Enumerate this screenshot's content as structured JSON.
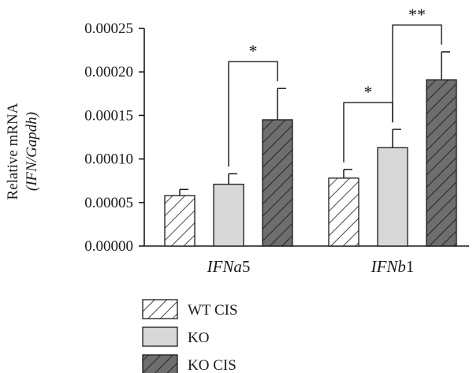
{
  "chart_data": {
    "type": "bar",
    "categories": [
      "IFNa5",
      "IFNb1"
    ],
    "category_parts": [
      {
        "prefix": "IFNa",
        "suffix": "5"
      },
      {
        "prefix": "IFNb",
        "suffix": "1"
      }
    ],
    "series": [
      {
        "name": "WT CIS",
        "values": [
          5.8e-05,
          7.8e-05
        ],
        "errors": [
          7e-06,
          1e-05
        ],
        "pattern": "hatch-light"
      },
      {
        "name": "KO",
        "values": [
          7.1e-05,
          0.000113
        ],
        "errors": [
          1.2e-05,
          2.1e-05
        ],
        "pattern": "solid-light"
      },
      {
        "name": "KO CIS",
        "values": [
          0.000145,
          0.000191
        ],
        "errors": [
          3.6e-05,
          3.2e-05
        ],
        "pattern": "hatch-dark"
      }
    ],
    "ylabel_line1": "Relative mRNA",
    "ylabel_line2": "(IFN/Gapdh)",
    "ylim": [
      0,
      0.00025
    ],
    "yticks": [
      "0.00000",
      "0.00005",
      "0.00010",
      "0.00015",
      "0.00020",
      "0.00025"
    ],
    "ytick_values": [
      0,
      5e-05,
      0.0001,
      0.00015,
      0.0002,
      0.00025
    ],
    "significance": [
      {
        "category": 0,
        "from_series": 1,
        "to_series": 2,
        "label": "*"
      },
      {
        "category": 1,
        "from_series": 0,
        "to_series": 1,
        "label": "*"
      },
      {
        "category": 1,
        "from_series": 1,
        "to_series": 2,
        "label": "**"
      }
    ],
    "grid": false,
    "legend_position": "bottom-left"
  },
  "colors": {
    "axis": "#1a1a1a",
    "light_fill": "#d8d8d8",
    "dark_fill": "#6e6e6e",
    "hatch_light_bg": "#ffffff",
    "hatch_light_line": "#1a1a1a",
    "hatch_dark_line": "#2a2a2a"
  }
}
